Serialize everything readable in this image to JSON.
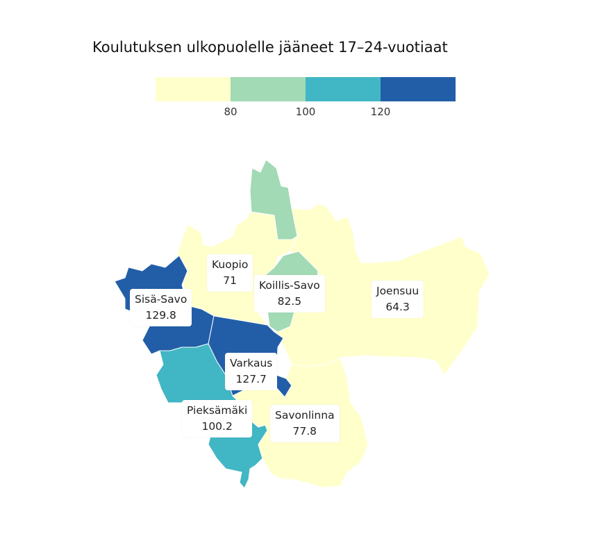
{
  "title": "Koulutuksen ulkopuolelle jääneet 17–24-vuotiaat",
  "legend": {
    "bins": [
      {
        "color": "#ffffcc"
      },
      {
        "color": "#a1dab4"
      },
      {
        "color": "#41b6c4"
      },
      {
        "color": "#225ea8"
      }
    ],
    "ticks": [
      "80",
      "100",
      "120"
    ]
  },
  "regions": [
    {
      "name": "Kuopio",
      "value": "71",
      "color": "#ffffcc"
    },
    {
      "name": "Koillis-Savo",
      "value": "82.5",
      "color": "#a1dab4"
    },
    {
      "name": "Joensuu",
      "value": "64.3",
      "color": "#ffffcc"
    },
    {
      "name": "Sisä-Savo",
      "value": "129.8",
      "color": "#225ea8"
    },
    {
      "name": "Varkaus",
      "value": "127.7",
      "color": "#225ea8"
    },
    {
      "name": "Pieksämäki",
      "value": "100.2",
      "color": "#41b6c4"
    },
    {
      "name": "Savonlinna",
      "value": "77.8",
      "color": "#ffffcc"
    }
  ]
}
